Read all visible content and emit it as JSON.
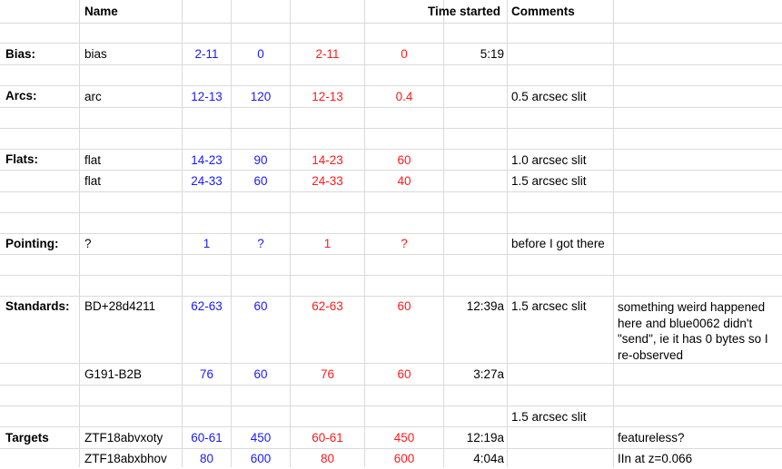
{
  "header": {
    "name": "Name",
    "time_started": "Time started",
    "comments": "Comments"
  },
  "rows": {
    "bias": {
      "label": "Bias:",
      "name": "bias",
      "blue_range": "2-11",
      "blue_exp": "0",
      "red_range": "2-11",
      "red_exp": "0",
      "time": "5:19",
      "comment": ""
    },
    "arcs": {
      "label": "Arcs:",
      "name": "arc",
      "blue_range": "12-13",
      "blue_exp": "120",
      "red_range": "12-13",
      "red_exp": "0.4",
      "time": "",
      "comment": "0.5 arcsec slit"
    },
    "flats1": {
      "label": "Flats:",
      "name": "flat",
      "blue_range": "14-23",
      "blue_exp": "90",
      "red_range": "14-23",
      "red_exp": "60",
      "time": "",
      "comment": "1.0 arcsec slit"
    },
    "flats2": {
      "label": "",
      "name": "flat",
      "blue_range": "24-33",
      "blue_exp": "60",
      "red_range": "24-33",
      "red_exp": "40",
      "time": "",
      "comment": "1.5 arcsec slit"
    },
    "pointing": {
      "label": "Pointing:",
      "name": "?",
      "blue_range": "1",
      "blue_exp": "?",
      "red_range": "1",
      "red_exp": "?",
      "time": "",
      "comment": "before I got there"
    },
    "std1": {
      "label": "Standards:",
      "name": "BD+28d4211",
      "blue_range": "62-63",
      "blue_exp": "60",
      "red_range": "62-63",
      "red_exp": "60",
      "time": "12:39a",
      "comment": "1.5 arcsec slit",
      "note": "something weird happened here and blue0062 didn't \"send\", ie it has 0 bytes so I re-observed"
    },
    "std2": {
      "label": "",
      "name": "G191-B2B",
      "blue_range": "76",
      "blue_exp": "60",
      "red_range": "76",
      "red_exp": "60",
      "time": "3:27a",
      "comment": ""
    },
    "targets_header": {
      "comment": "1.5 arcsec slit"
    },
    "tgt1": {
      "label": "Targets",
      "name": "ZTF18abvxoty",
      "blue_range": "60-61",
      "blue_exp": "450",
      "red_range": "60-61",
      "red_exp": "450",
      "time": "12:19a",
      "comment": "",
      "note": "featureless?"
    },
    "tgt2": {
      "label": "",
      "name": "ZTF18abxbhov",
      "blue_range": "80",
      "blue_exp": "600",
      "red_range": "80",
      "red_exp": "600",
      "time": "4:04a",
      "comment": "",
      "note": "IIn at z=0.066"
    }
  }
}
